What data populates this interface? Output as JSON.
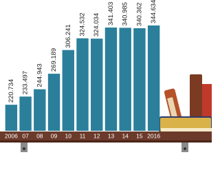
{
  "chart_data": {
    "type": "bar",
    "categories": [
      "2006",
      "07",
      "08",
      "09",
      "10",
      "11",
      "12",
      "13",
      "14",
      "15",
      "2016"
    ],
    "values": [
      220.734,
      233.497,
      244.943,
      269.189,
      306.241,
      324.532,
      324.034,
      341.403,
      340.985,
      340.362,
      344.634
    ],
    "color": "#2b7f9b",
    "ylim": [
      180,
      350
    ]
  }
}
